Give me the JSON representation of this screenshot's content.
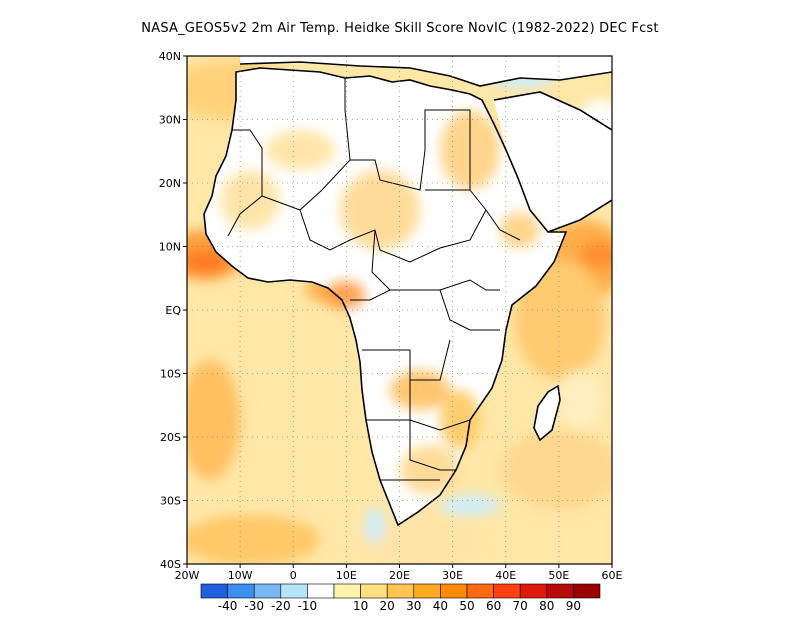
{
  "title": "NASA_GEOS5v2  2m Air Temp. Heidke Skill Score NovIC (1982-2022) DEC Fcst",
  "lat_labels": [
    "40N",
    "30N",
    "20N",
    "10N",
    "EQ",
    "10S",
    "20S",
    "30S",
    "40S"
  ],
  "lon_labels": [
    "20W",
    "10W",
    "0",
    "10E",
    "20E",
    "30E",
    "40E",
    "50E",
    "60E"
  ],
  "colorbar": {
    "colors": [
      "#1f5fe0",
      "#3c8ff0",
      "#79b8f5",
      "#b4e4f8",
      "#ffffff",
      "#fff3b0",
      "#ffdf80",
      "#ffc550",
      "#ffaa20",
      "#ff8c00",
      "#ff6a10",
      "#ff4010",
      "#e01a0a",
      "#b80a0a",
      "#9a0000"
    ],
    "labels": [
      "-40",
      "-30",
      "-20",
      "-10",
      "10",
      "20",
      "30",
      "40",
      "50",
      "60",
      "70",
      "80",
      "90"
    ]
  },
  "map": {
    "lon_range": [
      -20,
      60
    ],
    "lat_range": [
      -40,
      40
    ],
    "land_color": "#ffffff",
    "coast_color": "#000000"
  }
}
